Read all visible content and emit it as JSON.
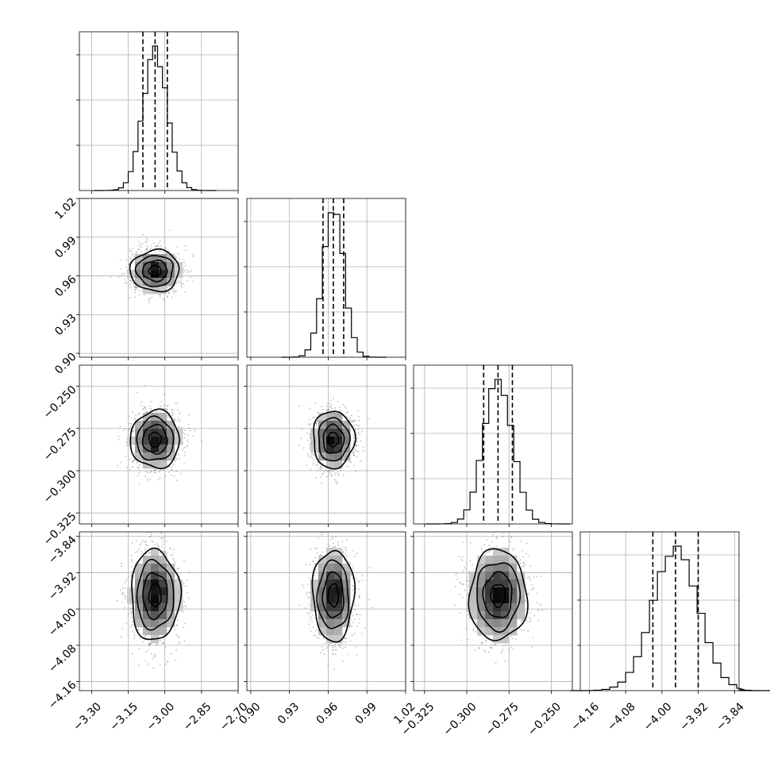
{
  "chart_data": {
    "type": "corner",
    "title": "",
    "grid": true,
    "parameters": [
      {
        "name": "",
        "median": -3.04,
        "quantile_16": -3.09,
        "quantile_84": -2.99,
        "std": 0.05,
        "range": [
          -3.35,
          -2.7
        ],
        "ticks": [
          "−3.30",
          "−3.15",
          "−3.00",
          "−2.85",
          "−2.70"
        ],
        "tick_values": [
          -3.3,
          -3.15,
          -3.0,
          -2.85,
          -2.7
        ],
        "hist_bin_width": 0.02
      },
      {
        "name": "",
        "median": 0.964,
        "quantile_16": 0.956,
        "quantile_84": 0.972,
        "std": 0.008,
        "range": [
          0.897,
          1.02
        ],
        "ticks": [
          "0.90",
          "0.93",
          "0.96",
          "0.99",
          "1.02"
        ],
        "tick_values": [
          0.9,
          0.93,
          0.96,
          0.99,
          1.02
        ],
        "hist_bin_width": 0.0045
      },
      {
        "name": "",
        "median": -0.2815,
        "quantile_16": -0.29,
        "quantile_84": -0.273,
        "std": 0.0085,
        "range": [
          -0.3315,
          -0.2375
        ],
        "ticks": [
          "−0.325",
          "−0.300",
          "−0.275",
          "−0.250"
        ],
        "tick_values": [
          -0.325,
          -0.3,
          -0.275,
          -0.25
        ],
        "hist_bin_width": 0.0037
      },
      {
        "name": "",
        "median": -3.97,
        "quantile_16": -4.02,
        "quantile_84": -3.92,
        "std": 0.05,
        "range": [
          -4.18,
          -3.83
        ],
        "ticks": [
          "−4.16",
          "−4.08",
          "−4.00",
          "−3.92",
          "−3.84"
        ],
        "tick_values": [
          -4.16,
          -4.08,
          -4.0,
          -3.92,
          -3.84
        ],
        "hist_bin_width": 0.0175
      }
    ]
  }
}
